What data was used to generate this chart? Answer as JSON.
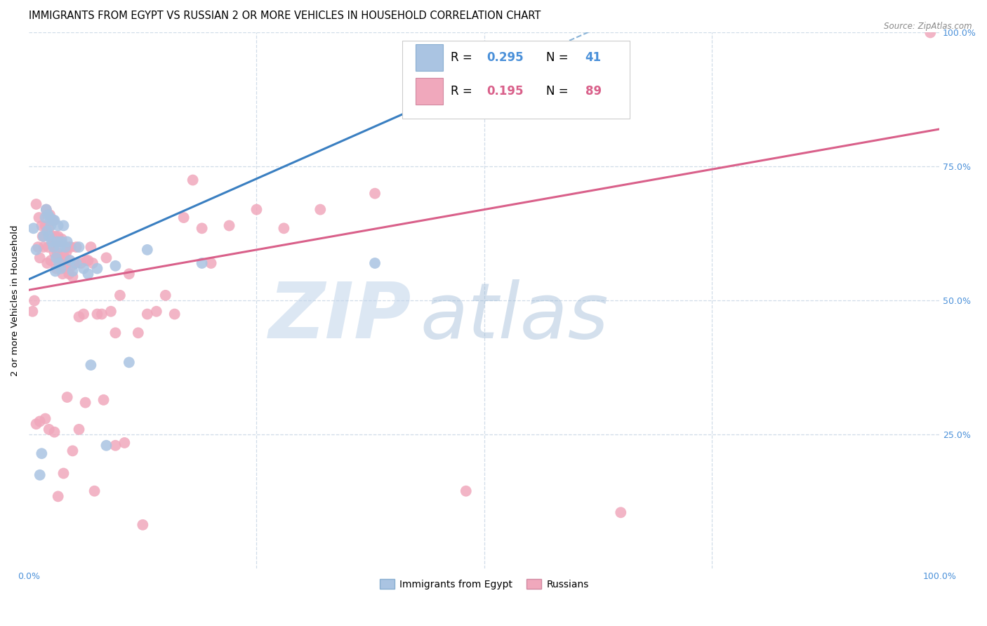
{
  "title": "IMMIGRANTS FROM EGYPT VS RUSSIAN 2 OR MORE VEHICLES IN HOUSEHOLD CORRELATION CHART",
  "source": "Source: ZipAtlas.com",
  "ylabel": "2 or more Vehicles in Household",
  "xmin": 0.0,
  "xmax": 1.0,
  "ymin": 0.0,
  "ymax": 1.0,
  "egypt_color": "#aac4e2",
  "egypt_line_color": "#3a7fc1",
  "egypt_dash_color": "#8ab4d8",
  "russia_color": "#f0a8bc",
  "russia_line_color": "#d9608a",
  "egypt_R": 0.295,
  "egypt_N": 41,
  "russia_R": 0.195,
  "russia_N": 89,
  "legend_labels": [
    "Immigrants from Egypt",
    "Russians"
  ],
  "tick_color": "#4a90d9",
  "grid_color": "#d0dce8",
  "watermark_zip_color": "#c0d4ea",
  "watermark_atlas_color": "#a0bcd8",
  "egypt_scatter_x": [
    0.005,
    0.008,
    0.012,
    0.014,
    0.016,
    0.018,
    0.019,
    0.02,
    0.021,
    0.022,
    0.023,
    0.024,
    0.025,
    0.026,
    0.027,
    0.028,
    0.029,
    0.03,
    0.031,
    0.032,
    0.033,
    0.034,
    0.035,
    0.036,
    0.038,
    0.04,
    0.042,
    0.045,
    0.048,
    0.052,
    0.055,
    0.06,
    0.065,
    0.068,
    0.075,
    0.085,
    0.095,
    0.11,
    0.13,
    0.19,
    0.38
  ],
  "egypt_scatter_y": [
    0.635,
    0.595,
    0.175,
    0.215,
    0.62,
    0.655,
    0.67,
    0.63,
    0.66,
    0.62,
    0.655,
    0.64,
    0.61,
    0.65,
    0.6,
    0.65,
    0.555,
    0.58,
    0.61,
    0.64,
    0.57,
    0.6,
    0.56,
    0.61,
    0.64,
    0.6,
    0.61,
    0.575,
    0.555,
    0.57,
    0.6,
    0.56,
    0.55,
    0.38,
    0.56,
    0.23,
    0.565,
    0.385,
    0.595,
    0.57,
    0.57
  ],
  "russia_scatter_x": [
    0.004,
    0.006,
    0.008,
    0.01,
    0.011,
    0.012,
    0.014,
    0.015,
    0.016,
    0.018,
    0.019,
    0.02,
    0.021,
    0.022,
    0.023,
    0.024,
    0.025,
    0.026,
    0.027,
    0.028,
    0.029,
    0.03,
    0.031,
    0.032,
    0.033,
    0.034,
    0.035,
    0.036,
    0.037,
    0.038,
    0.039,
    0.04,
    0.041,
    0.042,
    0.043,
    0.044,
    0.045,
    0.046,
    0.047,
    0.048,
    0.05,
    0.052,
    0.055,
    0.057,
    0.06,
    0.063,
    0.065,
    0.068,
    0.07,
    0.075,
    0.08,
    0.085,
    0.09,
    0.095,
    0.1,
    0.11,
    0.12,
    0.13,
    0.14,
    0.15,
    0.16,
    0.17,
    0.18,
    0.19,
    0.2,
    0.22,
    0.25,
    0.28,
    0.32,
    0.38,
    0.008,
    0.012,
    0.018,
    0.022,
    0.028,
    0.032,
    0.038,
    0.042,
    0.048,
    0.055,
    0.062,
    0.072,
    0.082,
    0.095,
    0.105,
    0.125,
    0.48,
    0.65,
    0.99
  ],
  "russia_scatter_y": [
    0.48,
    0.5,
    0.68,
    0.6,
    0.655,
    0.58,
    0.64,
    0.62,
    0.6,
    0.64,
    0.67,
    0.57,
    0.6,
    0.635,
    0.66,
    0.575,
    0.62,
    0.605,
    0.65,
    0.59,
    0.62,
    0.56,
    0.59,
    0.62,
    0.58,
    0.61,
    0.575,
    0.615,
    0.55,
    0.585,
    0.57,
    0.56,
    0.59,
    0.57,
    0.6,
    0.55,
    0.575,
    0.6,
    0.565,
    0.545,
    0.57,
    0.6,
    0.47,
    0.57,
    0.475,
    0.575,
    0.575,
    0.6,
    0.57,
    0.475,
    0.475,
    0.58,
    0.48,
    0.44,
    0.51,
    0.55,
    0.44,
    0.475,
    0.48,
    0.51,
    0.475,
    0.655,
    0.725,
    0.635,
    0.57,
    0.64,
    0.67,
    0.635,
    0.67,
    0.7,
    0.27,
    0.275,
    0.28,
    0.26,
    0.255,
    0.135,
    0.178,
    0.32,
    0.22,
    0.26,
    0.31,
    0.145,
    0.315,
    0.23,
    0.235,
    0.082,
    0.145,
    0.105,
    1.0
  ]
}
